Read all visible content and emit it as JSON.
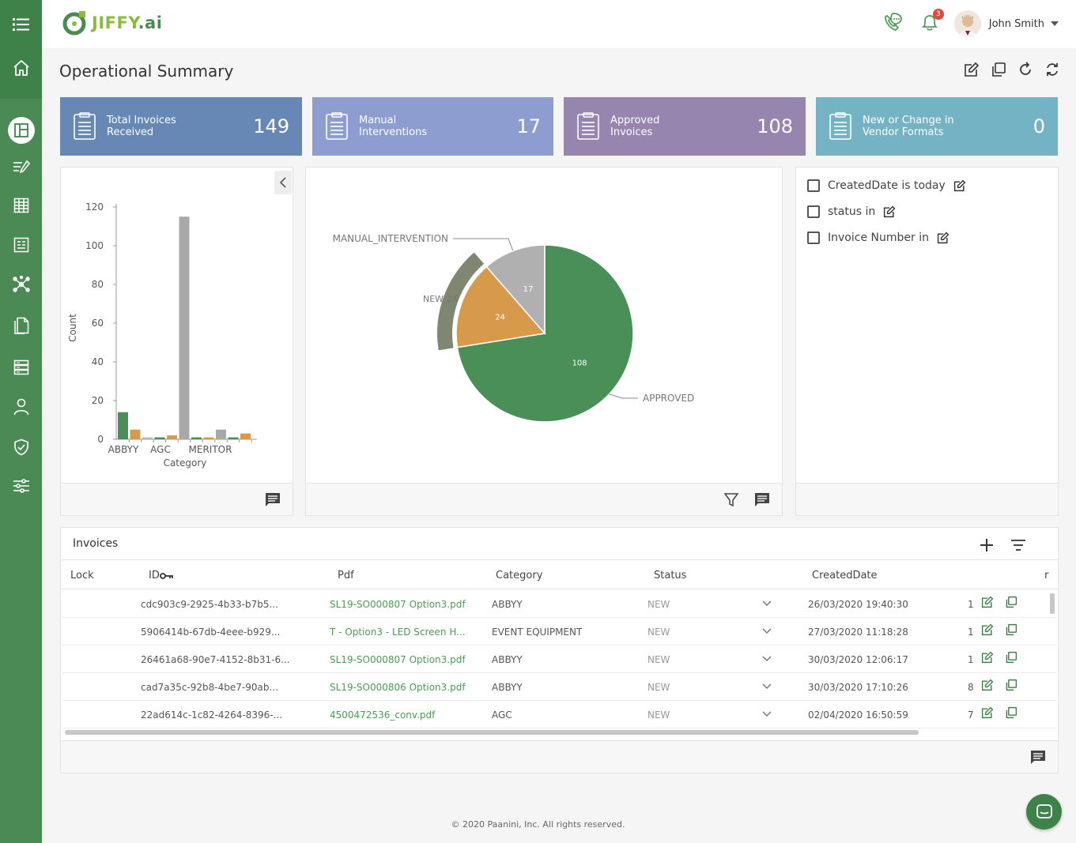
{
  "app": {
    "logo_text": "JIFFY",
    "logo_suffix": ".ai"
  },
  "topbar": {
    "notification_count": "3",
    "user_name": "John Smith"
  },
  "page": {
    "title": "Operational Summary"
  },
  "kpis": [
    {
      "label_line1": "Total Invoices",
      "label_line2": "Received",
      "value": "149",
      "color": "#6787b5"
    },
    {
      "label_line1": "Manual",
      "label_line2": "Interventions",
      "value": "17",
      "color": "#8e9dcf"
    },
    {
      "label_line1": "Approved",
      "label_line2": "Invoices",
      "value": "108",
      "color": "#9685ae"
    },
    {
      "label_line1": "New or Change in",
      "label_line2": "Vendor Formats",
      "value": "0",
      "color": "#73b3c3"
    }
  ],
  "filters": [
    {
      "label": "CreatedDate is today"
    },
    {
      "label": "status in"
    },
    {
      "label": "Invoice Number in"
    }
  ],
  "chart_data": [
    {
      "type": "bar",
      "xlabel": "Category",
      "ylabel": "Count",
      "ylim": [
        0,
        120
      ],
      "yticks": [
        0,
        20,
        40,
        60,
        80,
        100,
        120
      ],
      "tick_labels": [
        "ABBYY",
        "AGC",
        "MERITOR"
      ],
      "values": [
        14,
        5,
        1,
        1,
        2,
        115,
        1,
        1,
        5,
        1,
        3
      ],
      "colors": [
        "#4a8f57",
        "#d79a4a",
        "#b8b8b8",
        "#4a8f57",
        "#d79a4a",
        "#a8a8a8",
        "#4a8f57",
        "#d79a4a",
        "#a8a8a8",
        "#4a8f57",
        "#d79a4a"
      ]
    },
    {
      "type": "pie",
      "slices": [
        {
          "label": "APPROVED",
          "value": 108,
          "color": "#4a8f57"
        },
        {
          "label": "NEW",
          "value": 24,
          "color": "#d79a4a"
        },
        {
          "label": "MANUAL_INTERVENTION",
          "value": 17,
          "color": "#b0b0b0"
        }
      ],
      "highlight_label": "NEW 24"
    }
  ],
  "invoices": {
    "title": "Invoices",
    "columns": [
      "Lock",
      "ID",
      "Pdf",
      "Category",
      "Status",
      "CreatedDate",
      "r"
    ],
    "rows": [
      {
        "id": "cdc903c9-2925-4b33-b7b5...",
        "pdf": "SL19-SO000807 Option3.pdf",
        "category": "ABBYY",
        "status": "NEW",
        "created": "26/03/2020 19:40:30",
        "r": "1"
      },
      {
        "id": "5906414b-67db-4eee-b929...",
        "pdf": "T - Option3 - LED Screen H...",
        "category": "EVENT EQUIPMENT",
        "status": "NEW",
        "created": "27/03/2020 11:18:28",
        "r": "1"
      },
      {
        "id": "26461a68-90e7-4152-8b31-6...",
        "pdf": "SL19-SO000807 Option3.pdf",
        "category": "ABBYY",
        "status": "NEW",
        "created": "30/03/2020 12:06:17",
        "r": "1"
      },
      {
        "id": "cad7a35c-92b8-4be7-90ab...",
        "pdf": "SL19-SO000806 Option3.pdf",
        "category": "ABBYY",
        "status": "NEW",
        "created": "30/03/2020 17:10:26",
        "r": "8"
      },
      {
        "id": "22ad614c-1c82-4264-8396-...",
        "pdf": "4500472536_conv.pdf",
        "category": "AGC",
        "status": "NEW",
        "created": "02/04/2020 16:50:59",
        "r": "7"
      }
    ]
  },
  "footer": {
    "copyright": "© 2020 Paanini, Inc. All rights reserved."
  }
}
